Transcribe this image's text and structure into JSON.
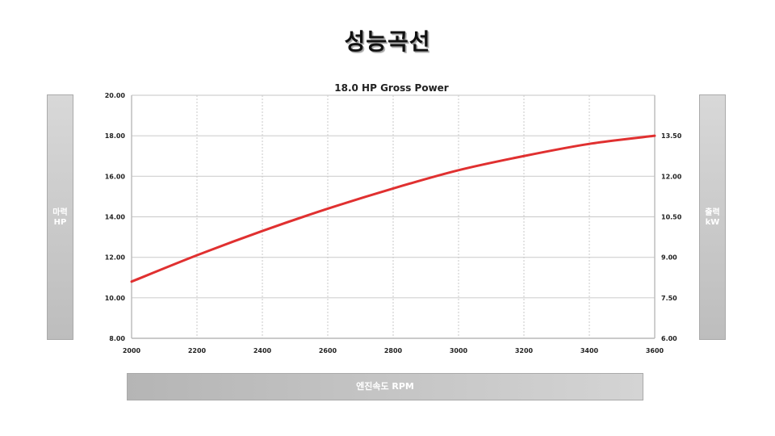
{
  "page": {
    "title": "성능곡선",
    "left_axis_label_line1": "마력",
    "left_axis_label_line2": "HP",
    "right_axis_label_line1": "출력",
    "right_axis_label_line2": "kW",
    "bottom_axis_label": "엔진속도 RPM"
  },
  "chart_data": {
    "type": "line",
    "title": "18.0 HP Gross Power",
    "xlabel": "엔진속도 RPM",
    "ylabel": "마력 HP",
    "y2label": "출력 kW",
    "xlim": [
      2000,
      3600
    ],
    "ylim": [
      8.0,
      20.0
    ],
    "y2lim": [
      6.0,
      15.0
    ],
    "x_ticks": [
      "2000",
      "2200",
      "2400",
      "2600",
      "2800",
      "3000",
      "3200",
      "3400",
      "3600"
    ],
    "y_ticks": [
      "8.00",
      "10.00",
      "12.00",
      "14.00",
      "16.00",
      "18.00",
      "20.00"
    ],
    "y2_ticks": [
      "6.00",
      "7.50",
      "9.00",
      "10.50",
      "12.00",
      "13.50"
    ],
    "grid": true,
    "series": [
      {
        "color": "#e03030",
        "x": [
          2000,
          2200,
          2400,
          2600,
          2800,
          3000,
          3200,
          3400,
          3600
        ],
        "y": [
          10.8,
          12.1,
          13.3,
          14.4,
          15.4,
          16.3,
          17.0,
          17.6,
          18.0
        ]
      }
    ]
  }
}
